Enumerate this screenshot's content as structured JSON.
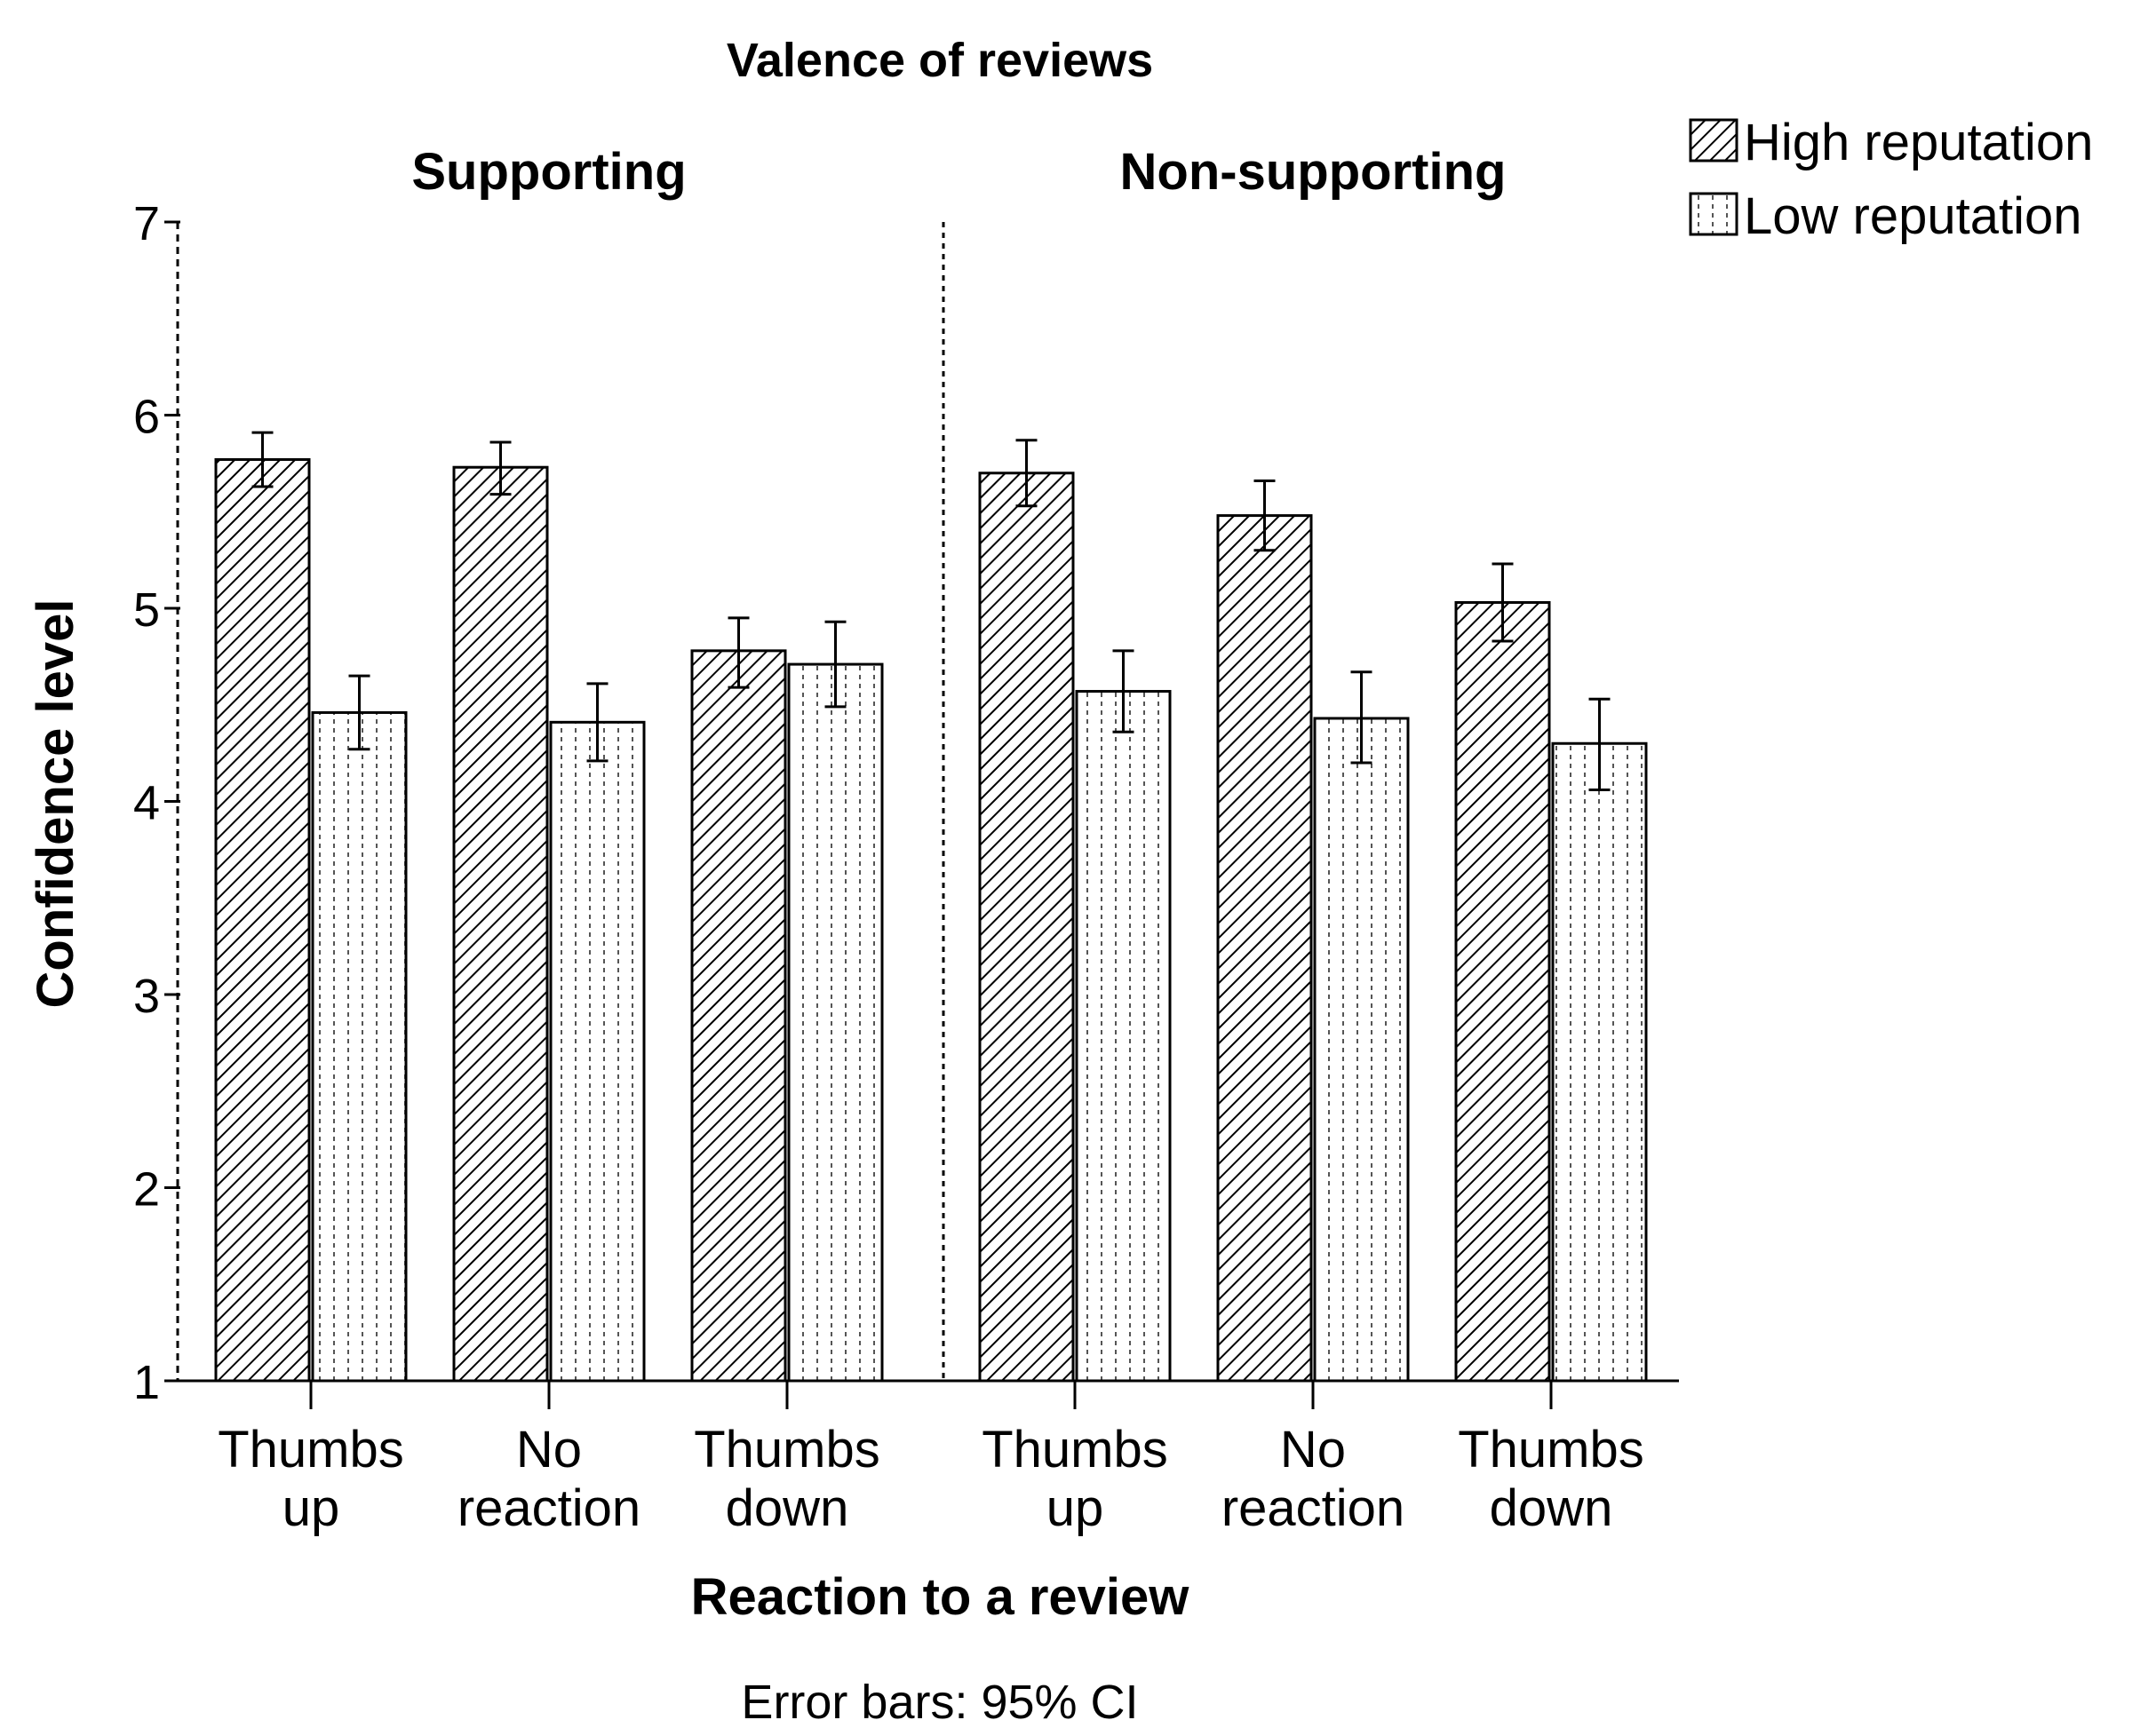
{
  "chart_data": {
    "type": "bar",
    "title": "Valence of reviews",
    "xlabel": "Reaction to a review",
    "ylabel": "Confidence level",
    "footnote": "Error bars: 95% CI",
    "ylim": [
      1,
      7
    ],
    "yticks": [
      1,
      2,
      3,
      4,
      5,
      6,
      7
    ],
    "grid": false,
    "legend_placement": "top-right",
    "categories": [
      [
        "Thumbs",
        "up"
      ],
      [
        "No",
        "reaction"
      ],
      [
        "Thumbs",
        "down"
      ]
    ],
    "series": [
      {
        "name": "High reputation",
        "pattern": "diagonal-hatch",
        "color": "#000000"
      },
      {
        "name": "Low reputation",
        "pattern": "dotted",
        "color": "#000000"
      }
    ],
    "panels": [
      {
        "title": "Supporting",
        "values": {
          "High reputation": [
            5.77,
            5.73,
            4.78
          ],
          "Low reputation": [
            4.46,
            4.41,
            4.71
          ]
        },
        "ci": {
          "High reputation": [
            [
              5.63,
              5.91
            ],
            [
              5.59,
              5.86
            ],
            [
              4.59,
              4.95
            ]
          ],
          "Low reputation": [
            [
              4.27,
              4.65
            ],
            [
              4.21,
              4.61
            ],
            [
              4.49,
              4.93
            ]
          ]
        }
      },
      {
        "title": "Non-supporting",
        "values": {
          "High reputation": [
            5.7,
            5.48,
            5.03
          ],
          "Low reputation": [
            4.57,
            4.43,
            4.3
          ]
        },
        "ci": {
          "High reputation": [
            [
              5.53,
              5.87
            ],
            [
              5.3,
              5.66
            ],
            [
              4.83,
              5.23
            ]
          ],
          "Low reputation": [
            [
              4.36,
              4.78
            ],
            [
              4.2,
              4.67
            ],
            [
              4.06,
              4.53
            ]
          ]
        }
      }
    ]
  }
}
